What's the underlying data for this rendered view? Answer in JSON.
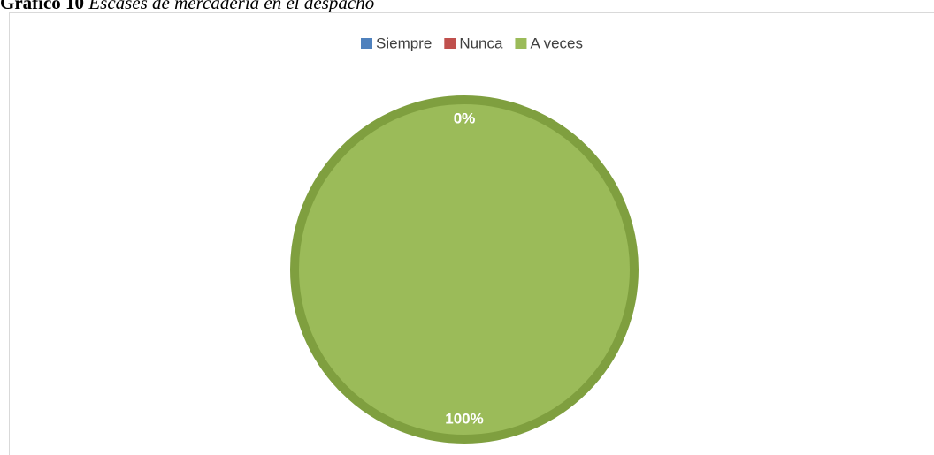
{
  "chart_data": {
    "type": "pie",
    "title_number": "Gráfico 10",
    "title": "Escases de mercadería en el despacho",
    "categories": [
      "Siempre",
      "Nunca",
      "A veces"
    ],
    "values": [
      0,
      0,
      100
    ],
    "value_labels": [
      "0%",
      "0%",
      "100%"
    ],
    "colors": [
      "#4f81bd",
      "#c0504d",
      "#9bbb59"
    ],
    "legend": "top"
  }
}
